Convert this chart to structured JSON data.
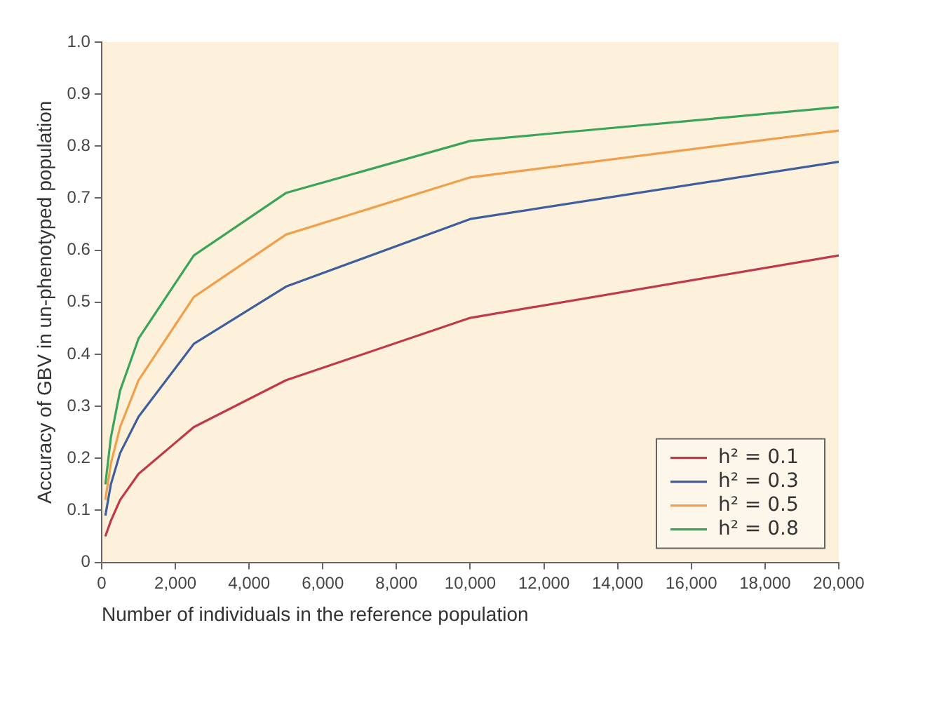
{
  "chart_data": {
    "type": "line",
    "xlabel": "Number of individuals in the reference population",
    "ylabel": "Accuracy of GBV in un-phenotyped population",
    "x": [
      100,
      250,
      500,
      1000,
      2500,
      5000,
      10000,
      20000
    ],
    "series": [
      {
        "name": "h² = 0.1",
        "color": "#c0394b",
        "values": [
          0.05,
          0.08,
          0.12,
          0.17,
          0.26,
          0.35,
          0.47,
          0.59
        ]
      },
      {
        "name": "h² = 0.3",
        "color": "#3f5e9e",
        "values": [
          0.09,
          0.15,
          0.21,
          0.28,
          0.42,
          0.53,
          0.66,
          0.77
        ]
      },
      {
        "name": "h² = 0.5",
        "color": "#f0a04b",
        "values": [
          0.12,
          0.19,
          0.26,
          0.35,
          0.51,
          0.63,
          0.74,
          0.83
        ]
      },
      {
        "name": "h² = 0.8",
        "color": "#3aa55a",
        "values": [
          0.15,
          0.24,
          0.33,
          0.43,
          0.59,
          0.71,
          0.81,
          0.875
        ]
      }
    ],
    "xlim": [
      0,
      20000
    ],
    "xticks": [
      0,
      {
        "value": 2000,
        "label": "2,000"
      },
      {
        "value": 4000,
        "label": "4,000"
      },
      {
        "value": 6000,
        "label": "6,000"
      },
      {
        "value": 8000,
        "label": "8,000"
      },
      {
        "value": 10000,
        "label": "10,000"
      },
      {
        "value": 12000,
        "label": "12,000"
      },
      {
        "value": 14000,
        "label": "14,000"
      },
      {
        "value": 16000,
        "label": "16,000"
      },
      {
        "value": 18000,
        "label": "18,000"
      },
      {
        "value": 20000,
        "label": "20,000"
      }
    ],
    "ylim": [
      0,
      1
    ],
    "yticks": [
      0,
      0.1,
      0.2,
      0.3,
      0.4,
      0.5,
      0.6,
      0.7,
      0.8,
      0.9,
      {
        "value": 1,
        "label": "1.0"
      }
    ],
    "grid": false,
    "legend": "bottom right",
    "marker": "none",
    "line_style": "solid"
  }
}
